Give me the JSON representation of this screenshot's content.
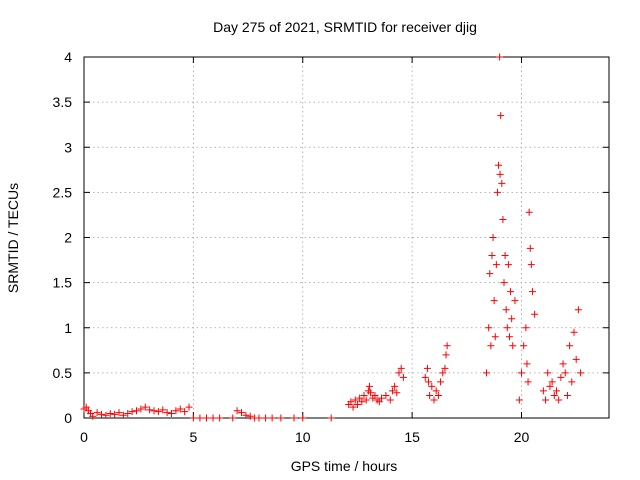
{
  "chart_data": {
    "type": "scatter",
    "title": "Day 275 of 2021, SRMTID for receiver djig",
    "xlabel": "GPS time / hours",
    "ylabel": "SRMTID / TECUs",
    "xlim": [
      0,
      24
    ],
    "ylim": [
      0,
      4
    ],
    "xticks": [
      0,
      5,
      10,
      15,
      20
    ],
    "yticks": [
      0,
      0.5,
      1,
      1.5,
      2,
      2.5,
      3,
      3.5,
      4
    ],
    "xtick_labels": [
      "0",
      "5",
      "10",
      "15",
      "20"
    ],
    "ytick_labels": [
      "0",
      "0.5",
      "1",
      "1.5",
      "2",
      "2.5",
      "3",
      "3.5",
      "4"
    ],
    "grid": true,
    "marker": "plus",
    "color": "#ff0000",
    "series": [
      {
        "name": "SRMTID",
        "x": [
          0.0,
          0.1,
          0.2,
          0.3,
          0.4,
          0.6,
          0.8,
          1.0,
          1.2,
          1.4,
          1.6,
          1.8,
          2.0,
          2.2,
          2.4,
          2.6,
          2.8,
          3.0,
          3.2,
          3.4,
          3.6,
          3.8,
          4.0,
          4.2,
          4.4,
          4.6,
          4.8,
          5.0,
          5.3,
          5.6,
          5.9,
          6.2,
          6.8,
          7.0,
          7.2,
          7.4,
          7.6,
          7.8,
          8.0,
          8.3,
          8.6,
          9.0,
          9.6,
          10.0,
          11.3,
          12.1,
          12.2,
          12.3,
          12.4,
          12.5,
          12.6,
          12.7,
          12.8,
          12.9,
          13.0,
          13.05,
          13.1,
          13.2,
          13.3,
          13.4,
          13.5,
          13.6,
          13.8,
          14.0,
          14.1,
          14.2,
          14.3,
          14.4,
          14.5,
          14.6,
          15.6,
          15.7,
          15.75,
          15.8,
          15.9,
          16.0,
          16.1,
          16.2,
          16.3,
          16.4,
          16.5,
          16.55,
          16.6,
          18.4,
          18.5,
          18.55,
          18.6,
          18.65,
          18.7,
          18.75,
          18.8,
          18.85,
          18.9,
          18.95,
          19.0,
          19.02,
          19.05,
          19.1,
          19.15,
          19.2,
          19.25,
          19.3,
          19.35,
          19.4,
          19.45,
          19.5,
          19.55,
          19.6,
          19.7,
          19.9,
          20.0,
          20.1,
          20.2,
          20.25,
          20.3,
          20.35,
          20.4,
          20.45,
          20.5,
          20.6,
          21.0,
          21.1,
          21.2,
          21.3,
          21.4,
          21.5,
          21.6,
          21.7,
          21.8,
          21.9,
          22.0,
          22.1,
          22.2,
          22.3,
          22.4,
          22.5,
          22.6,
          22.7
        ],
        "y": [
          0.1,
          0.12,
          0.08,
          0.05,
          0.02,
          0.06,
          0.04,
          0.03,
          0.05,
          0.04,
          0.06,
          0.03,
          0.05,
          0.07,
          0.08,
          0.1,
          0.12,
          0.09,
          0.08,
          0.07,
          0.09,
          0.06,
          0.05,
          0.08,
          0.1,
          0.07,
          0.12,
          0.0,
          0.0,
          0.0,
          0.0,
          0.0,
          0.0,
          0.08,
          0.06,
          0.03,
          0.02,
          0.0,
          0.0,
          0.0,
          0.0,
          0.0,
          0.0,
          0.0,
          0.0,
          0.15,
          0.18,
          0.12,
          0.2,
          0.15,
          0.22,
          0.18,
          0.25,
          0.2,
          0.3,
          0.35,
          0.28,
          0.22,
          0.25,
          0.2,
          0.18,
          0.22,
          0.25,
          0.2,
          0.3,
          0.35,
          0.28,
          0.5,
          0.55,
          0.45,
          0.45,
          0.55,
          0.4,
          0.25,
          0.35,
          0.2,
          0.3,
          0.25,
          0.4,
          0.5,
          0.55,
          0.7,
          0.8,
          0.5,
          1.0,
          1.6,
          0.8,
          1.8,
          2.0,
          1.3,
          0.9,
          1.7,
          2.5,
          2.8,
          4.0,
          2.7,
          3.35,
          2.6,
          2.2,
          1.5,
          1.8,
          1.2,
          1.0,
          1.7,
          0.9,
          1.4,
          1.1,
          0.8,
          1.3,
          0.2,
          0.5,
          0.8,
          1.0,
          0.6,
          0.4,
          2.28,
          1.88,
          1.7,
          1.4,
          1.15,
          0.3,
          0.2,
          0.5,
          0.35,
          0.4,
          0.25,
          0.3,
          0.2,
          0.45,
          0.6,
          0.5,
          0.25,
          0.8,
          0.4,
          0.95,
          0.65,
          1.2,
          0.5
        ]
      }
    ]
  }
}
